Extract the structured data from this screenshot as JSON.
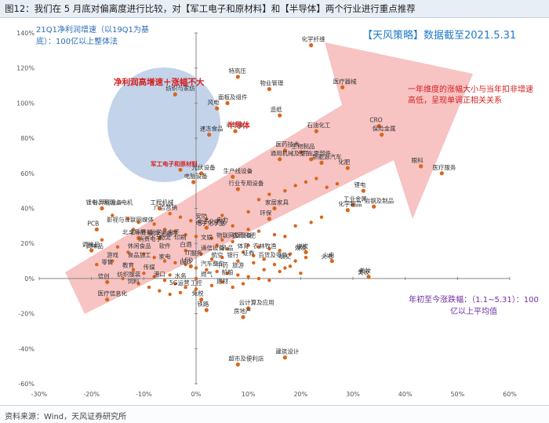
{
  "header": {
    "figure_title": "图12：我们在 5 月底对偏离度进行比较，对【军工电子和原材料】和【半导体】两个行业进行重点推荐",
    "source": "资料来源：Wind，天风证券研究所"
  },
  "annotations": {
    "tag": "【天风策略】数据截至2021.5.31",
    "blue_note": "21Q1净利润增速（以19Q1为基底）：100亿以上整体法",
    "red_note": "一年维度的涨幅大小与当年扣非增速高低，呈现单调正相关关系",
    "purple_note": "年初至今涨跌幅：（1.1~5.31）：100亿以上平均值",
    "bubble_title": "净利润高增速＋涨幅不大",
    "highlight_military": "军工电子和原材料",
    "highlight_semi": "半导体"
  },
  "colors": {
    "dot": "#d9661c",
    "arrow": "#f6b9b9",
    "bubble": "#a9c0e0",
    "highlight": "#d42020",
    "axis": "#888888"
  },
  "chart_data": {
    "type": "scatter",
    "title": "",
    "xlabel": "年初至今涨跌幅（1.1~5.31）",
    "ylabel": "21Q1净利润增速（以19Q1为基底）",
    "xlim": [
      -0.3,
      0.6
    ],
    "ylim": [
      -0.6,
      1.4
    ],
    "xticks": [
      "-30%",
      "-20%",
      "-10%",
      "0%",
      "10%",
      "20%",
      "30%",
      "40%",
      "50%",
      "60%"
    ],
    "yticks": [
      "-60%",
      "-40%",
      "-20%",
      "0%",
      "20%",
      "40%",
      "60%",
      "80%",
      "100%",
      "120%",
      "140%"
    ],
    "points": [
      {
        "label": "化学纤维",
        "x": 0.22,
        "y": 1.33
      },
      {
        "label": "特高压",
        "x": 0.08,
        "y": 1.15
      },
      {
        "label": "物业管理",
        "x": 0.14,
        "y": 1.08
      },
      {
        "label": "医疗器械",
        "x": 0.28,
        "y": 1.09
      },
      {
        "label": "纺织与家纺",
        "x": -0.04,
        "y": 1.05
      },
      {
        "label": "面板及组件",
        "x": 0.06,
        "y": 1.0
      },
      {
        "label": "风电",
        "x": 0.04,
        "y": 0.97
      },
      {
        "label": "造纸",
        "x": 0.16,
        "y": 0.93
      },
      {
        "label": "速冻食品",
        "x": 0.025,
        "y": 0.82
      },
      {
        "label": "半导体",
        "x": 0.075,
        "y": 0.84
      },
      {
        "label": "CRO",
        "x": 0.35,
        "y": 0.87
      },
      {
        "label": "保险金属",
        "x": 0.355,
        "y": 0.82
      },
      {
        "label": "石油化工",
        "x": 0.23,
        "y": 0.84
      },
      {
        "label": "医药技术",
        "x": 0.17,
        "y": 0.73
      },
      {
        "label": "生物制品",
        "x": 0.2,
        "y": 0.72
      },
      {
        "label": "通用机械及整车",
        "x": 0.16,
        "y": 0.68
      },
      {
        "label": "汽车零部件",
        "x": 0.22,
        "y": 0.68
      },
      {
        "label": "新能源汽车",
        "x": 0.24,
        "y": 0.66
      },
      {
        "label": "化肥",
        "x": 0.29,
        "y": 0.63
      },
      {
        "label": "医疗服务",
        "x": 0.47,
        "y": 0.6
      },
      {
        "label": "眼科",
        "x": 0.43,
        "y": 0.64
      },
      {
        "label": "军工电子和原材料",
        "x": -0.03,
        "y": 0.62
      },
      {
        "label": "光伏设备",
        "x": 0.01,
        "y": 0.6
      },
      {
        "label": "电脑设备",
        "x": -0.005,
        "y": 0.55
      },
      {
        "label": "生产线设备",
        "x": 0.07,
        "y": 0.58
      },
      {
        "label": "行业专用设备",
        "x": 0.08,
        "y": 0.51
      },
      {
        "label": "锂电",
        "x": 0.32,
        "y": 0.5
      },
      {
        "label": "工业金属",
        "x": 0.3,
        "y": 0.42
      },
      {
        "label": "化学制品",
        "x": 0.29,
        "y": 0.39
      },
      {
        "label": "冶钢及制品",
        "x": 0.34,
        "y": 0.41
      },
      {
        "label": "计算机设备",
        "x": -0.18,
        "y": 0.4
      },
      {
        "label": "工程机械",
        "x": -0.07,
        "y": 0.4
      },
      {
        "label": "家居家具",
        "x": 0.15,
        "y": 0.4
      },
      {
        "label": "环保",
        "x": 0.14,
        "y": 0.34
      },
      {
        "label": "PCB",
        "x": -0.19,
        "y": 0.28
      },
      {
        "label": "电子化学品",
        "x": 0.02,
        "y": 0.29
      },
      {
        "label": "北斗导航",
        "x": -0.11,
        "y": 0.23
      },
      {
        "label": "光学光电子",
        "x": -0.07,
        "y": 0.23
      },
      {
        "label": "调味品",
        "x": -0.2,
        "y": 0.16
      },
      {
        "label": "煤炭",
        "x": 0.21,
        "y": 0.15
      },
      {
        "label": "火电",
        "x": 0.26,
        "y": 0.1
      },
      {
        "label": "美妆",
        "x": 0.33,
        "y": 0.01
      },
      {
        "label": "LED",
        "x": -0.01,
        "y": 0.07
      },
      {
        "label": "信创",
        "x": -0.17,
        "y": -0.02
      },
      {
        "label": "医疗信息化",
        "x": -0.17,
        "y": -0.12
      },
      {
        "label": "免税",
        "x": 0.01,
        "y": -0.12
      },
      {
        "label": "铁路",
        "x": 0.02,
        "y": -0.18
      },
      {
        "label": "云计算及应用",
        "x": 0.1,
        "y": -0.17
      },
      {
        "label": "房地产",
        "x": 0.09,
        "y": -0.22
      },
      {
        "label": "建筑设计",
        "x": 0.17,
        "y": -0.45
      },
      {
        "label": "超市及便利店",
        "x": 0.08,
        "y": -0.49
      }
    ],
    "background_points": [
      [
        -0.16,
        0.36
      ],
      [
        -0.13,
        0.34
      ],
      [
        -0.11,
        0.32
      ],
      [
        -0.08,
        0.31
      ],
      [
        -0.06,
        0.28
      ],
      [
        -0.04,
        0.27
      ],
      [
        -0.02,
        0.25
      ],
      [
        0.0,
        0.24
      ],
      [
        0.03,
        0.23
      ],
      [
        0.05,
        0.22
      ],
      [
        0.07,
        0.21
      ],
      [
        0.1,
        0.19
      ],
      [
        0.12,
        0.18
      ],
      [
        0.14,
        0.17
      ],
      [
        0.16,
        0.16
      ],
      [
        0.18,
        0.14
      ],
      [
        -0.15,
        0.18
      ],
      [
        -0.13,
        0.15
      ],
      [
        -0.1,
        0.14
      ],
      [
        -0.08,
        0.12
      ],
      [
        -0.06,
        0.1
      ],
      [
        -0.04,
        0.09
      ],
      [
        -0.02,
        0.08
      ],
      [
        0.0,
        0.06
      ],
      [
        0.02,
        0.05
      ],
      [
        0.04,
        0.04
      ],
      [
        0.06,
        0.03
      ],
      [
        0.08,
        0.02
      ],
      [
        0.1,
        0.01
      ],
      [
        0.12,
        0.0
      ],
      [
        0.14,
        -0.01
      ],
      [
        -0.12,
        0.05
      ],
      [
        -0.1,
        0.03
      ],
      [
        -0.08,
        0.01
      ],
      [
        -0.06,
        -0.01
      ],
      [
        -0.04,
        -0.03
      ],
      [
        -0.02,
        -0.05
      ],
      [
        0.0,
        -0.06
      ],
      [
        0.03,
        -0.04
      ],
      [
        0.05,
        -0.02
      ],
      [
        -0.14,
        0.0
      ],
      [
        -0.11,
        -0.03
      ],
      [
        -0.09,
        -0.05
      ],
      [
        -0.07,
        -0.07
      ],
      [
        -0.05,
        -0.09
      ],
      [
        0.05,
        0.12
      ],
      [
        0.08,
        0.1
      ],
      [
        0.11,
        0.09
      ],
      [
        0.13,
        0.11
      ],
      [
        0.15,
        0.08
      ],
      [
        0.17,
        0.06
      ],
      [
        0.19,
        0.1
      ],
      [
        0.21,
        0.12
      ],
      [
        0.07,
        0.3
      ],
      [
        0.1,
        0.28
      ],
      [
        0.12,
        0.27
      ],
      [
        0.15,
        0.25
      ],
      [
        0.17,
        0.24
      ],
      [
        0.19,
        0.3
      ],
      [
        0.22,
        0.32
      ],
      [
        0.24,
        0.35
      ],
      [
        0.12,
        0.45
      ],
      [
        0.14,
        0.48
      ],
      [
        0.17,
        0.5
      ],
      [
        0.19,
        0.53
      ],
      [
        0.21,
        0.55
      ],
      [
        0.23,
        0.57
      ],
      [
        0.25,
        0.52
      ],
      [
        0.27,
        0.54
      ],
      [
        0.1,
        0.38
      ],
      [
        0.05,
        0.36
      ],
      [
        0.02,
        0.34
      ],
      [
        -0.01,
        0.33
      ],
      [
        -0.03,
        0.35
      ],
      [
        -0.05,
        0.37
      ],
      [
        -0.09,
        0.26
      ],
      [
        -0.12,
        0.28
      ],
      [
        -0.18,
        0.22
      ],
      [
        -0.16,
        0.1
      ],
      [
        -0.19,
        0.08
      ],
      [
        0.09,
        0.15
      ],
      [
        0.11,
        0.13
      ],
      [
        0.06,
        0.17
      ],
      [
        0.04,
        0.19
      ],
      [
        -0.02,
        0.16
      ],
      [
        0.01,
        0.14
      ],
      [
        0.03,
        0.11
      ],
      [
        0.13,
        0.05
      ],
      [
        0.16,
        0.04
      ],
      [
        0.18,
        0.07
      ],
      [
        0.2,
        0.03
      ],
      [
        0.09,
        -0.03
      ],
      [
        0.07,
        -0.05
      ],
      [
        -0.03,
        -0.08
      ],
      [
        -0.05,
        0.02
      ],
      [
        0.0,
        0.0
      ]
    ],
    "callouts": [
      {
        "text": "锂电、照明、电机",
        "x": -0.19,
        "y": 0.41
      },
      {
        "text": "广告营销",
        "x": -0.06,
        "y": 0.38
      },
      {
        "text": "安防",
        "x": 0.02,
        "y": 0.33
      },
      {
        "text": "影视与互联网媒体",
        "x": -0.15,
        "y": 0.31
      },
      {
        "text": "电力",
        "x": 0.06,
        "y": 0.31
      },
      {
        "text": "电子化学品",
        "x": 0.02,
        "y": 0.29
      },
      {
        "text": "北斗导航",
        "x": -0.12,
        "y": 0.24
      },
      {
        "text": "光学光电子",
        "x": -0.07,
        "y": 0.23
      },
      {
        "text": "消费电子",
        "x": -0.09,
        "y": 0.2
      },
      {
        "text": "物流",
        "x": -0.05,
        "y": 0.21
      },
      {
        "text": "印刷",
        "x": -0.02,
        "y": 0.21
      },
      {
        "text": "文娱",
        "x": 0.03,
        "y": 0.21
      },
      {
        "text": "物联网及设备",
        "x": 0.06,
        "y": 0.22
      },
      {
        "text": "农药化肥",
        "x": 0.09,
        "y": 0.22
      },
      {
        "text": "调味品",
        "x": -0.19,
        "y": 0.16
      },
      {
        "text": "休闲食品",
        "x": -0.11,
        "y": 0.16
      },
      {
        "text": "软件",
        "x": -0.05,
        "y": 0.16
      },
      {
        "text": "白酒",
        "x": -0.01,
        "y": 0.17
      },
      {
        "text": "通信设备",
        "x": 0.03,
        "y": 0.15
      },
      {
        "text": "乳品",
        "x": 0.07,
        "y": 0.15
      },
      {
        "text": "体育",
        "x": 0.1,
        "y": 0.16
      },
      {
        "text": "农林牧渔",
        "x": 0.13,
        "y": 0.16
      },
      {
        "text": "煤炭",
        "x": 0.21,
        "y": 0.15
      },
      {
        "text": "游戏",
        "x": -0.15,
        "y": 0.11
      },
      {
        "text": "食品加工",
        "x": -0.11,
        "y": 0.11
      },
      {
        "text": "家电",
        "x": -0.05,
        "y": 0.1
      },
      {
        "text": "IT服务",
        "x": 0.0,
        "y": 0.12
      },
      {
        "text": "航空",
        "x": 0.05,
        "y": 0.11
      },
      {
        "text": "银行",
        "x": 0.08,
        "y": 0.11
      },
      {
        "text": "证券",
        "x": 0.11,
        "y": 0.12
      },
      {
        "text": "百货及零售",
        "x": 0.14,
        "y": 0.11
      },
      {
        "text": "轨交",
        "x": 0.18,
        "y": 0.1
      },
      {
        "text": "火电",
        "x": 0.26,
        "y": 0.1
      },
      {
        "text": "零售",
        "x": -0.16,
        "y": 0.07
      },
      {
        "text": "教育",
        "x": -0.12,
        "y": 0.05
      },
      {
        "text": "传媒",
        "x": -0.08,
        "y": 0.04
      },
      {
        "text": "LED",
        "x": -0.01,
        "y": 0.07
      },
      {
        "text": "汽车整车",
        "x": 0.03,
        "y": 0.06
      },
      {
        "text": "中药",
        "x": 0.06,
        "y": 0.05
      },
      {
        "text": "旅游",
        "x": 0.09,
        "y": 0.05
      },
      {
        "text": "纺织服装",
        "x": -0.13,
        "y": 0.0
      },
      {
        "text": "港口",
        "x": -0.06,
        "y": 0.0
      },
      {
        "text": "水务",
        "x": -0.02,
        "y": -0.01
      },
      {
        "text": "燃气",
        "x": 0.03,
        "y": 0.0
      },
      {
        "text": "船舶",
        "x": 0.07,
        "y": 0.01
      },
      {
        "text": "饲料",
        "x": -0.11,
        "y": -0.04
      },
      {
        "text": "5G运营",
        "x": -0.03,
        "y": -0.05
      },
      {
        "text": "工控",
        "x": 0.01,
        "y": -0.05
      },
      {
        "text": "建材",
        "x": 0.06,
        "y": -0.04
      },
      {
        "text": "美妆",
        "x": 0.33,
        "y": 0.01
      }
    ]
  }
}
